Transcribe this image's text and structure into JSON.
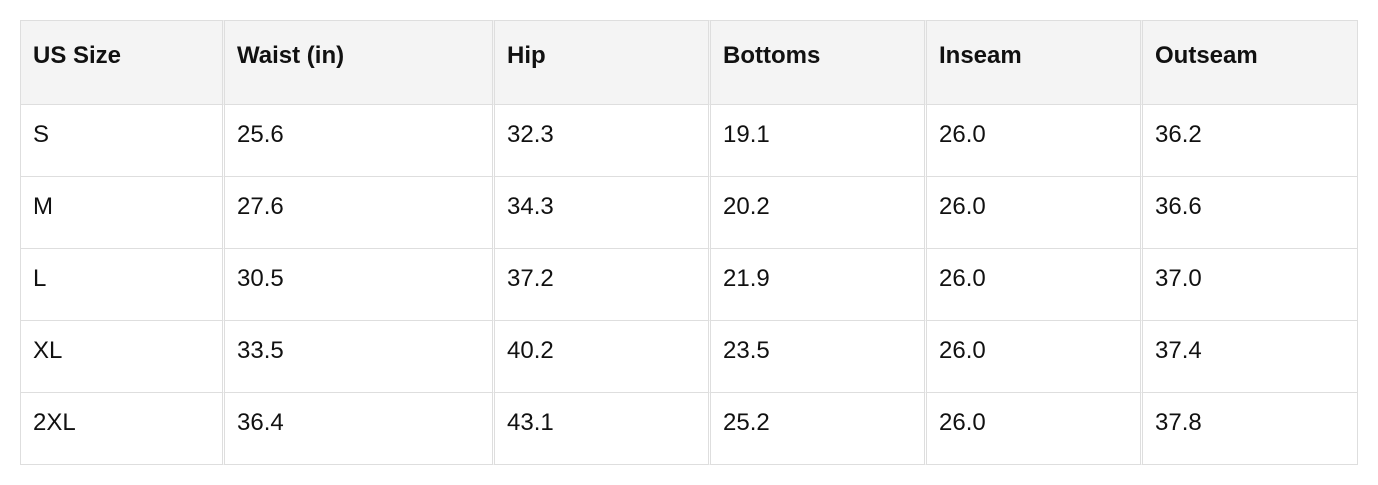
{
  "table": {
    "header": [
      "US Size",
      "Waist (in)",
      "Hip",
      "Bottoms",
      "Inseam",
      "Outseam"
    ],
    "rows": [
      [
        "S",
        "25.6",
        "32.3",
        "19.1",
        "26.0",
        "36.2"
      ],
      [
        "M",
        "27.6",
        "34.3",
        "20.2",
        "26.0",
        "36.6"
      ],
      [
        "L",
        "30.5",
        "37.2",
        "21.9",
        "26.0",
        "37.0"
      ],
      [
        "XL",
        "33.5",
        "40.2",
        "23.5",
        "26.0",
        "37.4"
      ],
      [
        "2XL",
        "36.4",
        "43.1",
        "25.2",
        "26.0",
        "37.8"
      ]
    ]
  }
}
